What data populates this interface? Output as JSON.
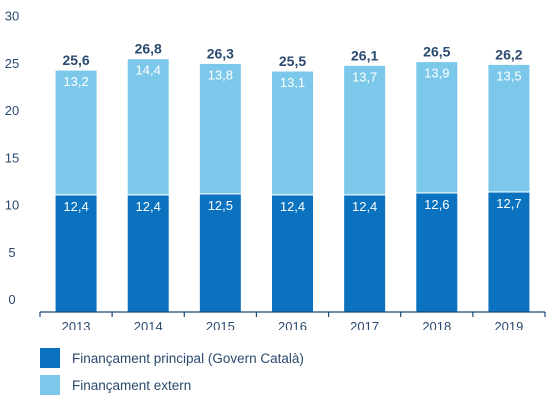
{
  "chart_data": {
    "type": "bar",
    "stacked": true,
    "categories": [
      "2013",
      "2014",
      "2015",
      "2016",
      "2017",
      "2018",
      "2019"
    ],
    "series": [
      {
        "name": "Finançament principal (Govern Català)",
        "values": [
          12.4,
          12.4,
          12.5,
          12.4,
          12.4,
          12.6,
          12.7
        ],
        "labels": [
          "12,4",
          "12,4",
          "12,5",
          "12,4",
          "12,4",
          "12,6",
          "12,7"
        ],
        "color": "#0a72bf"
      },
      {
        "name": "Finançament extern",
        "values": [
          13.2,
          14.4,
          13.8,
          13.1,
          13.7,
          13.9,
          13.5
        ],
        "labels": [
          "13,2",
          "14,4",
          "13,8",
          "13,1",
          "13,7",
          "13,9",
          "13,5"
        ],
        "color": "#7cc8ea"
      }
    ],
    "totals": [
      "25,6",
      "26,8",
      "26,3",
      "25,5",
      "26,1",
      "26,5",
      "26,2"
    ],
    "yticks": [
      "0",
      "5",
      "10",
      "15",
      "20",
      "25",
      "30"
    ],
    "ylim": [
      0,
      30
    ],
    "title": "",
    "xlabel": "",
    "ylabel": "",
    "grid": false,
    "legend_position": "bottom-left",
    "axis_color": "#1a4a78",
    "text_color": "#2b4a6f"
  }
}
